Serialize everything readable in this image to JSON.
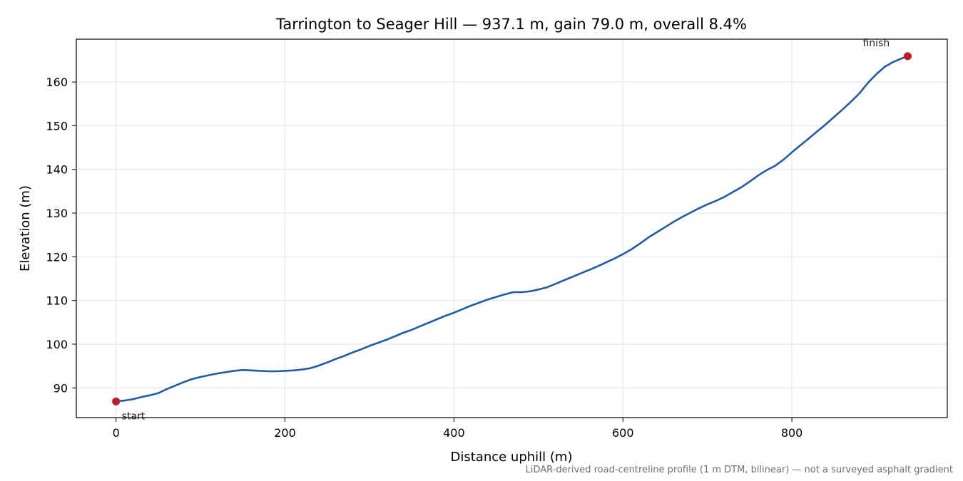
{
  "chart_data": {
    "type": "line",
    "title": "Tarrington to Seager Hill — 937.1 m, gain 79.0 m, overall 8.4%",
    "xlabel": "Distance uphill (m)",
    "ylabel": "Elevation (m)",
    "xlim": [
      -47,
      984
    ],
    "ylim": [
      83.2,
      169.8
    ],
    "xticks": [
      0,
      200,
      400,
      600,
      800
    ],
    "yticks": [
      90,
      100,
      110,
      120,
      130,
      140,
      150,
      160
    ],
    "grid": true,
    "line_color": "#1f5ba8",
    "marker_color": "#c11b2b",
    "series": [
      {
        "points": [
          [
            0,
            86.9
          ],
          [
            10,
            87.1
          ],
          [
            20,
            87.4
          ],
          [
            30,
            87.9
          ],
          [
            40,
            88.3
          ],
          [
            50,
            88.8
          ],
          [
            60,
            89.7
          ],
          [
            70,
            90.5
          ],
          [
            80,
            91.3
          ],
          [
            90,
            92.0
          ],
          [
            100,
            92.5
          ],
          [
            110,
            92.9
          ],
          [
            120,
            93.3
          ],
          [
            130,
            93.6
          ],
          [
            140,
            93.9
          ],
          [
            150,
            94.1
          ],
          [
            160,
            94.0
          ],
          [
            170,
            93.9
          ],
          [
            180,
            93.8
          ],
          [
            190,
            93.8
          ],
          [
            200,
            93.9
          ],
          [
            210,
            94.0
          ],
          [
            220,
            94.2
          ],
          [
            230,
            94.5
          ],
          [
            240,
            95.1
          ],
          [
            250,
            95.8
          ],
          [
            260,
            96.6
          ],
          [
            270,
            97.3
          ],
          [
            280,
            98.1
          ],
          [
            290,
            98.8
          ],
          [
            300,
            99.6
          ],
          [
            310,
            100.3
          ],
          [
            320,
            101.0
          ],
          [
            330,
            101.8
          ],
          [
            340,
            102.6
          ],
          [
            350,
            103.3
          ],
          [
            360,
            104.1
          ],
          [
            370,
            104.9
          ],
          [
            380,
            105.7
          ],
          [
            390,
            106.5
          ],
          [
            400,
            107.2
          ],
          [
            410,
            108.0
          ],
          [
            420,
            108.8
          ],
          [
            430,
            109.5
          ],
          [
            440,
            110.2
          ],
          [
            450,
            110.8
          ],
          [
            460,
            111.4
          ],
          [
            470,
            111.9
          ],
          [
            480,
            111.9
          ],
          [
            490,
            112.1
          ],
          [
            500,
            112.5
          ],
          [
            510,
            113.0
          ],
          [
            520,
            113.8
          ],
          [
            530,
            114.6
          ],
          [
            540,
            115.4
          ],
          [
            550,
            116.2
          ],
          [
            560,
            117.0
          ],
          [
            570,
            117.8
          ],
          [
            580,
            118.7
          ],
          [
            590,
            119.6
          ],
          [
            600,
            120.6
          ],
          [
            610,
            121.7
          ],
          [
            620,
            123.0
          ],
          [
            630,
            124.4
          ],
          [
            640,
            125.6
          ],
          [
            650,
            126.8
          ],
          [
            660,
            128.0
          ],
          [
            670,
            129.1
          ],
          [
            680,
            130.1
          ],
          [
            690,
            131.1
          ],
          [
            700,
            132.0
          ],
          [
            710,
            132.8
          ],
          [
            720,
            133.7
          ],
          [
            730,
            134.8
          ],
          [
            740,
            135.9
          ],
          [
            750,
            137.2
          ],
          [
            760,
            138.6
          ],
          [
            770,
            139.8
          ],
          [
            780,
            140.8
          ],
          [
            790,
            142.2
          ],
          [
            800,
            143.9
          ],
          [
            810,
            145.5
          ],
          [
            820,
            147.1
          ],
          [
            830,
            148.7
          ],
          [
            840,
            150.3
          ],
          [
            850,
            152.0
          ],
          [
            860,
            153.7
          ],
          [
            870,
            155.5
          ],
          [
            880,
            157.4
          ],
          [
            890,
            159.8
          ],
          [
            900,
            161.8
          ],
          [
            910,
            163.5
          ],
          [
            920,
            164.6
          ],
          [
            930,
            165.4
          ],
          [
            937.1,
            165.9
          ]
        ]
      }
    ],
    "annotations": [
      {
        "label": "start",
        "x": 0,
        "y": 86.9
      },
      {
        "label": "finish",
        "x": 937.1,
        "y": 165.9
      }
    ],
    "footnote": "LiDAR-derived road-centreline profile (1 m DTM, bilinear) — not a surveyed asphalt gradient"
  }
}
